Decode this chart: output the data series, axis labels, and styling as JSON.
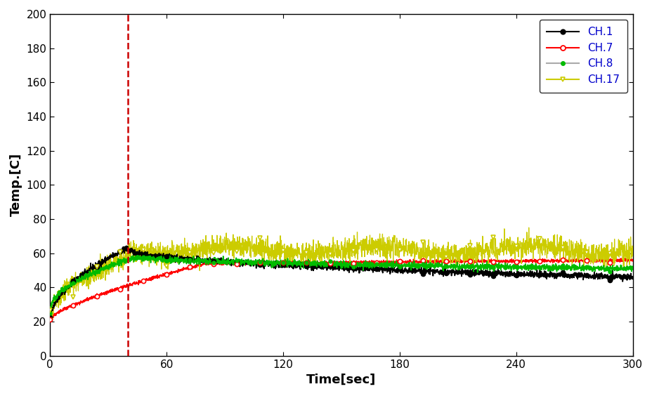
{
  "xlabel": "Time[sec]",
  "ylabel": "Temp.[C]",
  "xlim": [
    0,
    300
  ],
  "ylim": [
    0,
    200
  ],
  "xticks": [
    0,
    60,
    120,
    180,
    240,
    300
  ],
  "yticks": [
    0,
    20,
    40,
    60,
    80,
    100,
    120,
    140,
    160,
    180,
    200
  ],
  "vline_x": 40,
  "vline_color": "#cc0000",
  "channels": [
    "CH.1",
    "CH.7",
    "CH.8",
    "CH.17"
  ],
  "line_colors": [
    "#000000",
    "#ff0000",
    "#00bb00",
    "#cccc00"
  ],
  "legend_text_color": "#0000cc",
  "axis_label_color": "#000000",
  "tick_label_color": "#000000",
  "background_color": "#ffffff",
  "spine_color": "#000000"
}
